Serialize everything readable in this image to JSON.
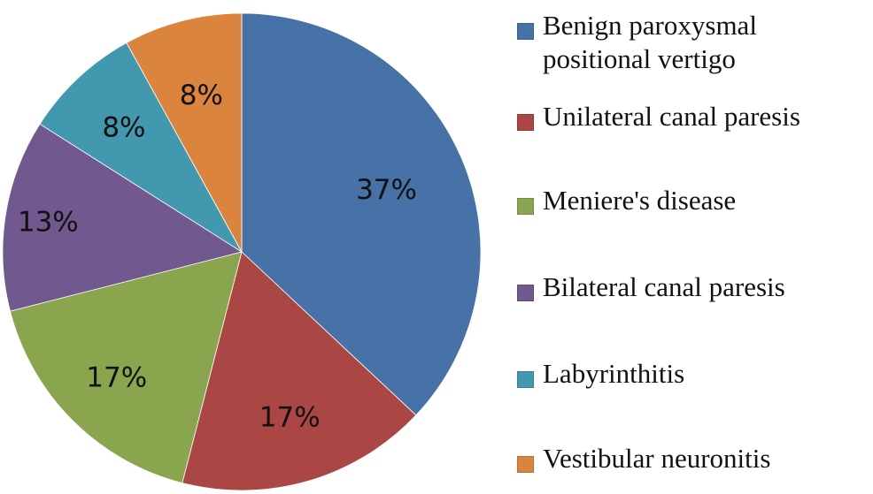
{
  "chart_data": {
    "type": "pie",
    "title": "",
    "categories": [
      "Benign paroxysmal positional vertigo",
      "Unilateral canal paresis",
      "Meniere's disease",
      "Bilateral canal paresis",
      "Labyrinthitis",
      "Vestibular neuronitis"
    ],
    "values": [
      37,
      17,
      17,
      13,
      8,
      8
    ],
    "labels": [
      "37%",
      "17%",
      "17%",
      "13%",
      "8%",
      "8%"
    ],
    "colors": [
      "#4672a8",
      "#aa4644",
      "#89a54e",
      "#71588f",
      "#4198af",
      "#db843d"
    ],
    "start_angle": "12 o'clock, clockwise",
    "legend_position": "right"
  },
  "legend": {
    "items": [
      {
        "label": "Benign paroxysmal positional vertigo",
        "color": "#4672a8"
      },
      {
        "label": "Unilateral canal paresis",
        "color": "#aa4644"
      },
      {
        "label": "Meniere's disease",
        "color": "#89a54e"
      },
      {
        "label": "Bilateral canal paresis",
        "color": "#71588f"
      },
      {
        "label": "Labyrinthitis",
        "color": "#4198af"
      },
      {
        "label": "Vestibular neuronitis",
        "color": "#db843d"
      }
    ]
  }
}
